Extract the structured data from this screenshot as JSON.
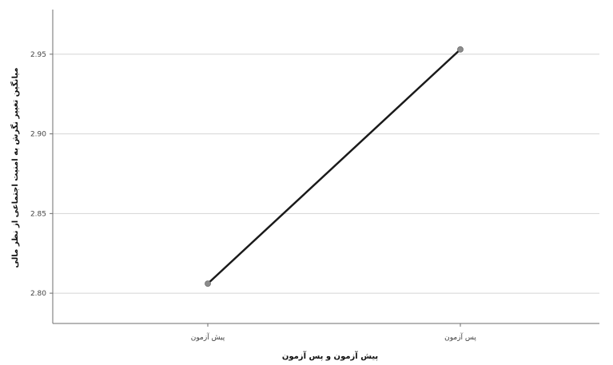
{
  "chart_data": {
    "type": "line",
    "categories": [
      "پیش آزمون",
      "پس آزمون"
    ],
    "series": [
      {
        "values": [
          2.806,
          2.953
        ]
      }
    ],
    "xlabel": "پیش آزمون و پس آزمون",
    "ylabel": "میانگین تغییر نگرش به امنیت اجتماعی از نظر مالی",
    "yticks": [
      2.8,
      2.85,
      2.9,
      2.95
    ],
    "ytick_labels": [
      "2.80",
      "2.85",
      "2.90",
      "2.95"
    ],
    "ylim": [
      2.781,
      2.978
    ],
    "grid": true,
    "colors": {
      "line": "#1a1a1a",
      "marker": "#8c8c8c",
      "grid": "#d4d4d4",
      "axis": "#6e6e6e"
    }
  }
}
